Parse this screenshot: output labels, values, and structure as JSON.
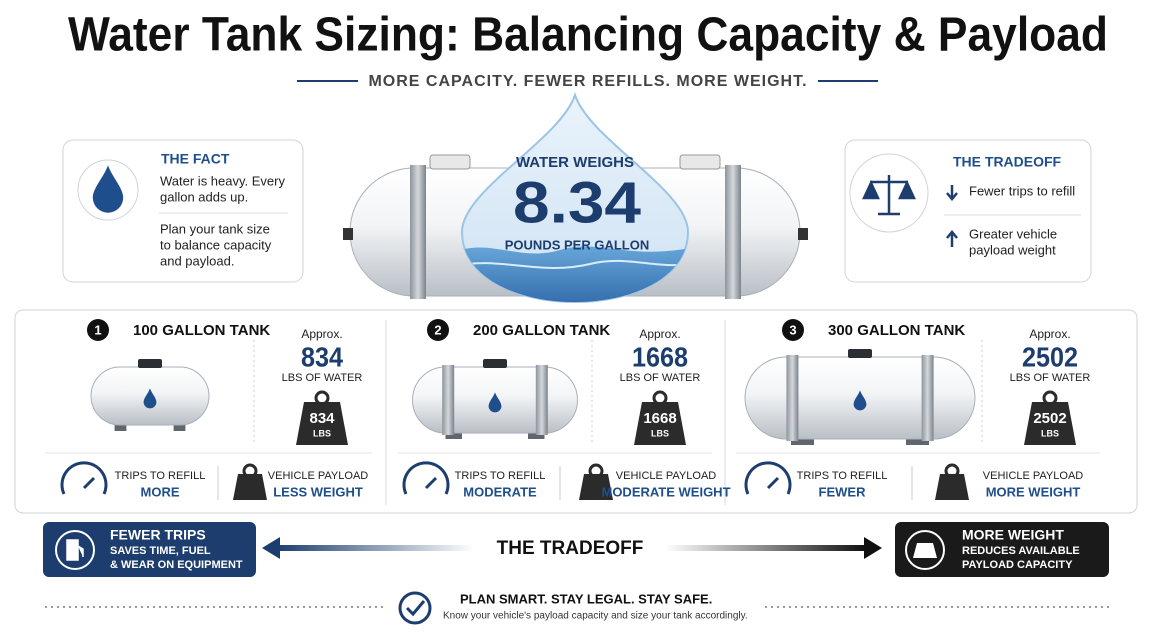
{
  "header": {
    "title": "Water Tank Sizing: Balancing Capacity & Payload",
    "subtitle": "MORE CAPACITY. FEWER REFILLS. MORE WEIGHT."
  },
  "fact": {
    "heading": "THE FACT",
    "paragraphs": [
      [
        "Water is heavy. Every",
        "gallon adds up."
      ],
      [
        "Plan your tank size",
        "to balance capacity",
        "and payload."
      ]
    ]
  },
  "center": {
    "top": "WATER WEIGHS",
    "value": "8.34",
    "unit": "POUNDS PER GALLON"
  },
  "tradeoff_box": {
    "heading": "THE TRADEOFF",
    "items": [
      [
        "Fewer trips to refill"
      ],
      [
        "Greater vehicle",
        "payload weight"
      ]
    ]
  },
  "tanks": [
    {
      "number": "1",
      "name": "100 GALLON TANK",
      "approx": "Approx.",
      "weight": "834",
      "weight_unit": "LBS OF WATER",
      "badge_unit": "LBS",
      "trips_label": "TRIPS TO REFILL",
      "trips": "MORE",
      "payload_label": "VEHICLE PAYLOAD",
      "payload": "LESS WEIGHT"
    },
    {
      "number": "2",
      "name": "200 GALLON TANK",
      "approx": "Approx.",
      "weight": "1668",
      "weight_unit": "LBS OF WATER",
      "badge_unit": "LBS",
      "trips_label": "TRIPS TO REFILL",
      "trips": "MODERATE",
      "payload_label": "VEHICLE PAYLOAD",
      "payload": "MODERATE WEIGHT"
    },
    {
      "number": "3",
      "name": "300 GALLON TANK",
      "approx": "Approx.",
      "weight": "2502",
      "weight_unit": "LBS OF WATER",
      "badge_unit": "LBS",
      "trips_label": "TRIPS TO REFILL",
      "trips": "FEWER",
      "payload_label": "VEHICLE PAYLOAD",
      "payload": "MORE WEIGHT"
    }
  ],
  "bottom": {
    "left": {
      "heading": "FEWER TRIPS",
      "lines": [
        "SAVES TIME, FUEL",
        "& WEAR ON EQUIPMENT"
      ]
    },
    "middle": "THE TRADEOFF",
    "right": {
      "heading": "MORE WEIGHT",
      "lines": [
        "REDUCES AVAILABLE",
        "PAYLOAD CAPACITY"
      ]
    }
  },
  "footer": {
    "heading": "PLAN SMART. STAY LEGAL. STAY SAFE.",
    "text": "Know your vehicle's payload capacity and size your tank accordingly."
  }
}
